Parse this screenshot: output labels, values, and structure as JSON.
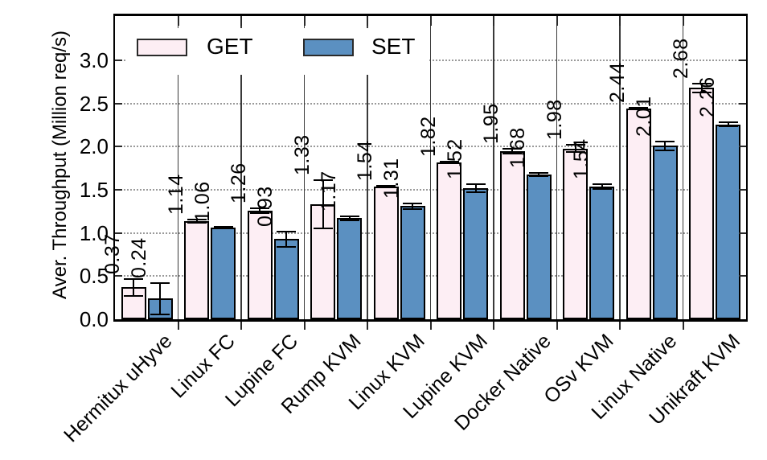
{
  "chart_data": {
    "type": "bar",
    "title": "",
    "xlabel": "",
    "ylabel": "Aver. Throughput (Million req/s)",
    "categories": [
      "Hermitux uHyve",
      "Linux FC",
      "Lupine FC",
      "Rump KVM",
      "Linux KVM",
      "Lupine KVM",
      "Docker Native",
      "OSv KVM",
      "Linux Native",
      "Unikraft KVM"
    ],
    "series": [
      {
        "name": "GET",
        "color": "#fdeef4",
        "values": [
          0.37,
          1.14,
          1.26,
          1.33,
          1.54,
          1.82,
          1.95,
          1.98,
          2.44,
          2.68
        ],
        "errors": [
          0.1,
          0.02,
          0.03,
          0.28,
          0.01,
          0.01,
          0.03,
          0.04,
          0.01,
          0.05
        ]
      },
      {
        "name": "SET",
        "color": "#5b90c1",
        "values": [
          0.24,
          1.06,
          0.93,
          1.17,
          1.31,
          1.52,
          1.68,
          1.54,
          2.01,
          2.26
        ],
        "errors": [
          0.18,
          0.01,
          0.09,
          0.02,
          0.03,
          0.05,
          0.02,
          0.03,
          0.05,
          0.02
        ]
      }
    ],
    "yticks": [
      "0.0",
      "0.5",
      "1.0",
      "1.5",
      "2.0",
      "2.5",
      "3.0"
    ],
    "ylim": [
      0,
      3.51
    ],
    "grid": "horizontal-dotted",
    "legend_position": "top-inside",
    "bar_label_rotation": 90,
    "xtick_rotation": 45,
    "error_bars": true,
    "bar_outline_color": "#000000",
    "separator_color": "#3a3a3a"
  }
}
